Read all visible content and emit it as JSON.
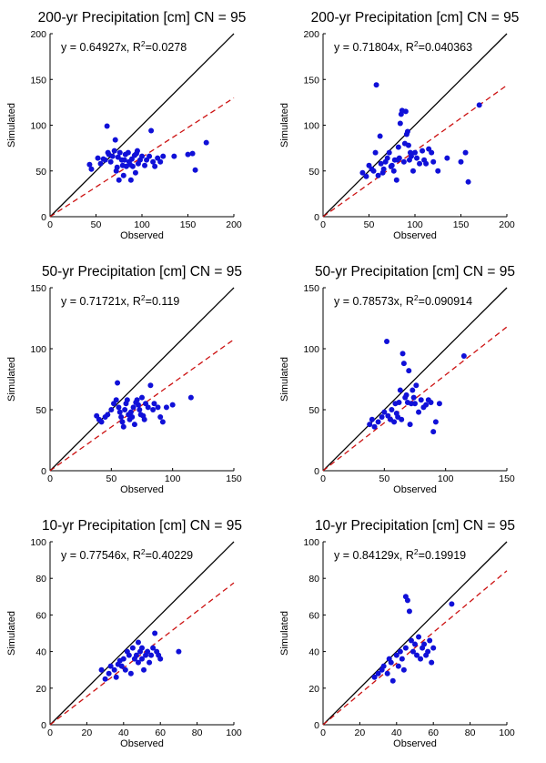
{
  "chart_data": [
    {
      "type": "scatter",
      "title": "200-yr Precipitation [cm]  CN = 95",
      "equation": {
        "prefix": "y = 0.64927x, R",
        "sup": "2",
        "suffix": "=0.0278"
      },
      "slope": 0.64927,
      "xlabel": "Observed",
      "ylabel": "Simulated",
      "xlim": [
        0,
        200
      ],
      "ylim": [
        0,
        200
      ],
      "xticks": [
        0,
        50,
        100,
        150,
        200
      ],
      "yticks": [
        0,
        50,
        100,
        150,
        200
      ],
      "points": [
        [
          43,
          57
        ],
        [
          45,
          52
        ],
        [
          52,
          64
        ],
        [
          55,
          58
        ],
        [
          58,
          63
        ],
        [
          60,
          62
        ],
        [
          62,
          99
        ],
        [
          63,
          70
        ],
        [
          64,
          68
        ],
        [
          66,
          60
        ],
        [
          68,
          66
        ],
        [
          70,
          72
        ],
        [
          71,
          84
        ],
        [
          72,
          50
        ],
        [
          73,
          54
        ],
        [
          74,
          65
        ],
        [
          75,
          40
        ],
        [
          76,
          70
        ],
        [
          78,
          62
        ],
        [
          79,
          56
        ],
        [
          80,
          45
        ],
        [
          81,
          62
        ],
        [
          82,
          68
        ],
        [
          83,
          55
        ],
        [
          85,
          70
        ],
        [
          86,
          60
        ],
        [
          87,
          57
        ],
        [
          88,
          40
        ],
        [
          89,
          63
        ],
        [
          90,
          55
        ],
        [
          92,
          67
        ],
        [
          93,
          48
        ],
        [
          94,
          69
        ],
        [
          95,
          72
        ],
        [
          96,
          58
        ],
        [
          98,
          62
        ],
        [
          100,
          66
        ],
        [
          103,
          56
        ],
        [
          105,
          62
        ],
        [
          108,
          66
        ],
        [
          110,
          94
        ],
        [
          112,
          60
        ],
        [
          114,
          55
        ],
        [
          117,
          64
        ],
        [
          120,
          60
        ],
        [
          123,
          66
        ],
        [
          135,
          66
        ],
        [
          150,
          68
        ],
        [
          155,
          69
        ],
        [
          158,
          51
        ],
        [
          170,
          81
        ]
      ]
    },
    {
      "type": "scatter",
      "title": "200-yr Precipitation [cm]  CN = 95",
      "equation": {
        "prefix": "y = 0.71804x, R",
        "sup": "2",
        "suffix": "=0.040363"
      },
      "slope": 0.71804,
      "xlabel": "Observed",
      "ylabel": "Simulated",
      "xlim": [
        0,
        200
      ],
      "ylim": [
        0,
        200
      ],
      "xticks": [
        0,
        50,
        100,
        150,
        200
      ],
      "yticks": [
        0,
        50,
        100,
        150,
        200
      ],
      "points": [
        [
          43,
          48
        ],
        [
          47,
          44
        ],
        [
          50,
          56
        ],
        [
          53,
          52
        ],
        [
          55,
          50
        ],
        [
          57,
          70
        ],
        [
          58,
          144
        ],
        [
          60,
          45
        ],
        [
          62,
          88
        ],
        [
          63,
          58
        ],
        [
          65,
          48
        ],
        [
          66,
          52
        ],
        [
          68,
          60
        ],
        [
          70,
          64
        ],
        [
          72,
          70
        ],
        [
          74,
          55
        ],
        [
          75,
          56
        ],
        [
          77,
          50
        ],
        [
          78,
          62
        ],
        [
          80,
          40
        ],
        [
          81,
          62
        ],
        [
          82,
          76
        ],
        [
          83,
          64
        ],
        [
          84,
          102
        ],
        [
          85,
          112
        ],
        [
          86,
          116
        ],
        [
          88,
          60
        ],
        [
          89,
          80
        ],
        [
          90,
          115
        ],
        [
          91,
          90
        ],
        [
          92,
          93
        ],
        [
          93,
          78
        ],
        [
          94,
          62
        ],
        [
          95,
          70
        ],
        [
          96,
          66
        ],
        [
          98,
          50
        ],
        [
          100,
          70
        ],
        [
          102,
          64
        ],
        [
          105,
          58
        ],
        [
          108,
          72
        ],
        [
          110,
          62
        ],
        [
          112,
          58
        ],
        [
          115,
          74
        ],
        [
          118,
          70
        ],
        [
          120,
          60
        ],
        [
          125,
          50
        ],
        [
          135,
          64
        ],
        [
          150,
          60
        ],
        [
          155,
          70
        ],
        [
          158,
          38
        ],
        [
          170,
          122
        ]
      ]
    },
    {
      "type": "scatter",
      "title": "50-yr Precipitation [cm]  CN = 95",
      "equation": {
        "prefix": "y = 0.71721x, R",
        "sup": "2",
        "suffix": "=0.119"
      },
      "slope": 0.71721,
      "xlabel": "Observed",
      "ylabel": "Simulated",
      "xlim": [
        0,
        150
      ],
      "ylim": [
        0,
        150
      ],
      "xticks": [
        0,
        50,
        100,
        150
      ],
      "yticks": [
        0,
        50,
        100,
        150
      ],
      "points": [
        [
          38,
          45
        ],
        [
          40,
          42
        ],
        [
          42,
          40
        ],
        [
          45,
          44
        ],
        [
          47,
          46
        ],
        [
          50,
          50
        ],
        [
          52,
          55
        ],
        [
          54,
          58
        ],
        [
          55,
          72
        ],
        [
          56,
          52
        ],
        [
          57,
          48
        ],
        [
          58,
          44
        ],
        [
          59,
          40
        ],
        [
          60,
          36
        ],
        [
          61,
          50
        ],
        [
          62,
          55
        ],
        [
          63,
          58
        ],
        [
          64,
          46
        ],
        [
          65,
          42
        ],
        [
          66,
          48
        ],
        [
          67,
          44
        ],
        [
          68,
          52
        ],
        [
          69,
          38
        ],
        [
          70,
          56
        ],
        [
          71,
          58
        ],
        [
          72,
          54
        ],
        [
          73,
          50
        ],
        [
          74,
          46
        ],
        [
          75,
          60
        ],
        [
          76,
          45
        ],
        [
          77,
          42
        ],
        [
          78,
          55
        ],
        [
          80,
          52
        ],
        [
          82,
          70
        ],
        [
          84,
          50
        ],
        [
          85,
          55
        ],
        [
          88,
          52
        ],
        [
          90,
          44
        ],
        [
          92,
          40
        ],
        [
          95,
          52
        ],
        [
          100,
          54
        ],
        [
          115,
          60
        ]
      ]
    },
    {
      "type": "scatter",
      "title": "50-yr Precipitation [cm]  CN = 95",
      "equation": {
        "prefix": "y = 0.78573x, R",
        "sup": "2",
        "suffix": "=0.090914"
      },
      "slope": 0.78573,
      "xlabel": "Observed",
      "ylabel": "Simulated",
      "xlim": [
        0,
        150
      ],
      "ylim": [
        0,
        150
      ],
      "xticks": [
        0,
        50,
        100,
        150
      ],
      "yticks": [
        0,
        50,
        100,
        150
      ],
      "points": [
        [
          38,
          38
        ],
        [
          40,
          42
        ],
        [
          42,
          36
        ],
        [
          45,
          40
        ],
        [
          48,
          44
        ],
        [
          50,
          48
        ],
        [
          52,
          106
        ],
        [
          53,
          45
        ],
        [
          55,
          42
        ],
        [
          56,
          50
        ],
        [
          58,
          40
        ],
        [
          59,
          55
        ],
        [
          60,
          47
        ],
        [
          61,
          44
        ],
        [
          62,
          56
        ],
        [
          63,
          66
        ],
        [
          64,
          42
        ],
        [
          65,
          96
        ],
        [
          66,
          88
        ],
        [
          67,
          60
        ],
        [
          68,
          62
        ],
        [
          69,
          56
        ],
        [
          70,
          82
        ],
        [
          71,
          38
        ],
        [
          72,
          55
        ],
        [
          73,
          66
        ],
        [
          74,
          60
        ],
        [
          75,
          55
        ],
        [
          76,
          70
        ],
        [
          78,
          48
        ],
        [
          80,
          58
        ],
        [
          82,
          52
        ],
        [
          84,
          54
        ],
        [
          86,
          58
        ],
        [
          88,
          56
        ],
        [
          90,
          32
        ],
        [
          92,
          40
        ],
        [
          95,
          55
        ],
        [
          115,
          94
        ]
      ]
    },
    {
      "type": "scatter",
      "title": "10-yr Precipitation [cm]  CN = 95",
      "equation": {
        "prefix": "y = 0.77546x, R",
        "sup": "2",
        "suffix": "=0.40229"
      },
      "slope": 0.77546,
      "xlabel": "Observed",
      "ylabel": "Simulated",
      "xlim": [
        0,
        100
      ],
      "ylim": [
        0,
        100
      ],
      "xticks": [
        0,
        20,
        40,
        60,
        80,
        100
      ],
      "yticks": [
        0,
        20,
        40,
        60,
        80,
        100
      ],
      "points": [
        [
          28,
          30
        ],
        [
          30,
          25
        ],
        [
          32,
          28
        ],
        [
          33,
          32
        ],
        [
          35,
          30
        ],
        [
          36,
          26
        ],
        [
          37,
          33
        ],
        [
          38,
          35
        ],
        [
          39,
          32
        ],
        [
          40,
          36
        ],
        [
          41,
          30
        ],
        [
          42,
          40
        ],
        [
          43,
          38
        ],
        [
          44,
          28
        ],
        [
          45,
          42
        ],
        [
          46,
          36
        ],
        [
          47,
          38
        ],
        [
          48,
          34
        ],
        [
          48,
          45
        ],
        [
          49,
          40
        ],
        [
          50,
          36
        ],
        [
          50,
          42
        ],
        [
          51,
          30
        ],
        [
          52,
          38
        ],
        [
          53,
          40
        ],
        [
          54,
          34
        ],
        [
          55,
          38
        ],
        [
          56,
          42
        ],
        [
          57,
          50
        ],
        [
          58,
          40
        ],
        [
          59,
          38
        ],
        [
          60,
          36
        ],
        [
          70,
          40
        ]
      ]
    },
    {
      "type": "scatter",
      "title": "10-yr Precipitation [cm]  CN = 95",
      "equation": {
        "prefix": "y = 0.84129x, R",
        "sup": "2",
        "suffix": "=0.19919"
      },
      "slope": 0.84129,
      "xlabel": "Observed",
      "ylabel": "Simulated",
      "xlim": [
        0,
        100
      ],
      "ylim": [
        0,
        100
      ],
      "xticks": [
        0,
        20,
        40,
        60,
        80,
        100
      ],
      "yticks": [
        0,
        20,
        40,
        60,
        80,
        100
      ],
      "points": [
        [
          28,
          26
        ],
        [
          30,
          28
        ],
        [
          32,
          30
        ],
        [
          33,
          32
        ],
        [
          35,
          28
        ],
        [
          36,
          36
        ],
        [
          37,
          34
        ],
        [
          38,
          24
        ],
        [
          40,
          38
        ],
        [
          41,
          32
        ],
        [
          42,
          40
        ],
        [
          43,
          36
        ],
        [
          44,
          30
        ],
        [
          45,
          42
        ],
        [
          45,
          70
        ],
        [
          46,
          68
        ],
        [
          47,
          62
        ],
        [
          48,
          46
        ],
        [
          49,
          40
        ],
        [
          50,
          44
        ],
        [
          51,
          38
        ],
        [
          52,
          48
        ],
        [
          53,
          36
        ],
        [
          54,
          42
        ],
        [
          55,
          44
        ],
        [
          56,
          38
        ],
        [
          57,
          40
        ],
        [
          58,
          46
        ],
        [
          59,
          34
        ],
        [
          60,
          42
        ],
        [
          70,
          66
        ]
      ]
    }
  ]
}
